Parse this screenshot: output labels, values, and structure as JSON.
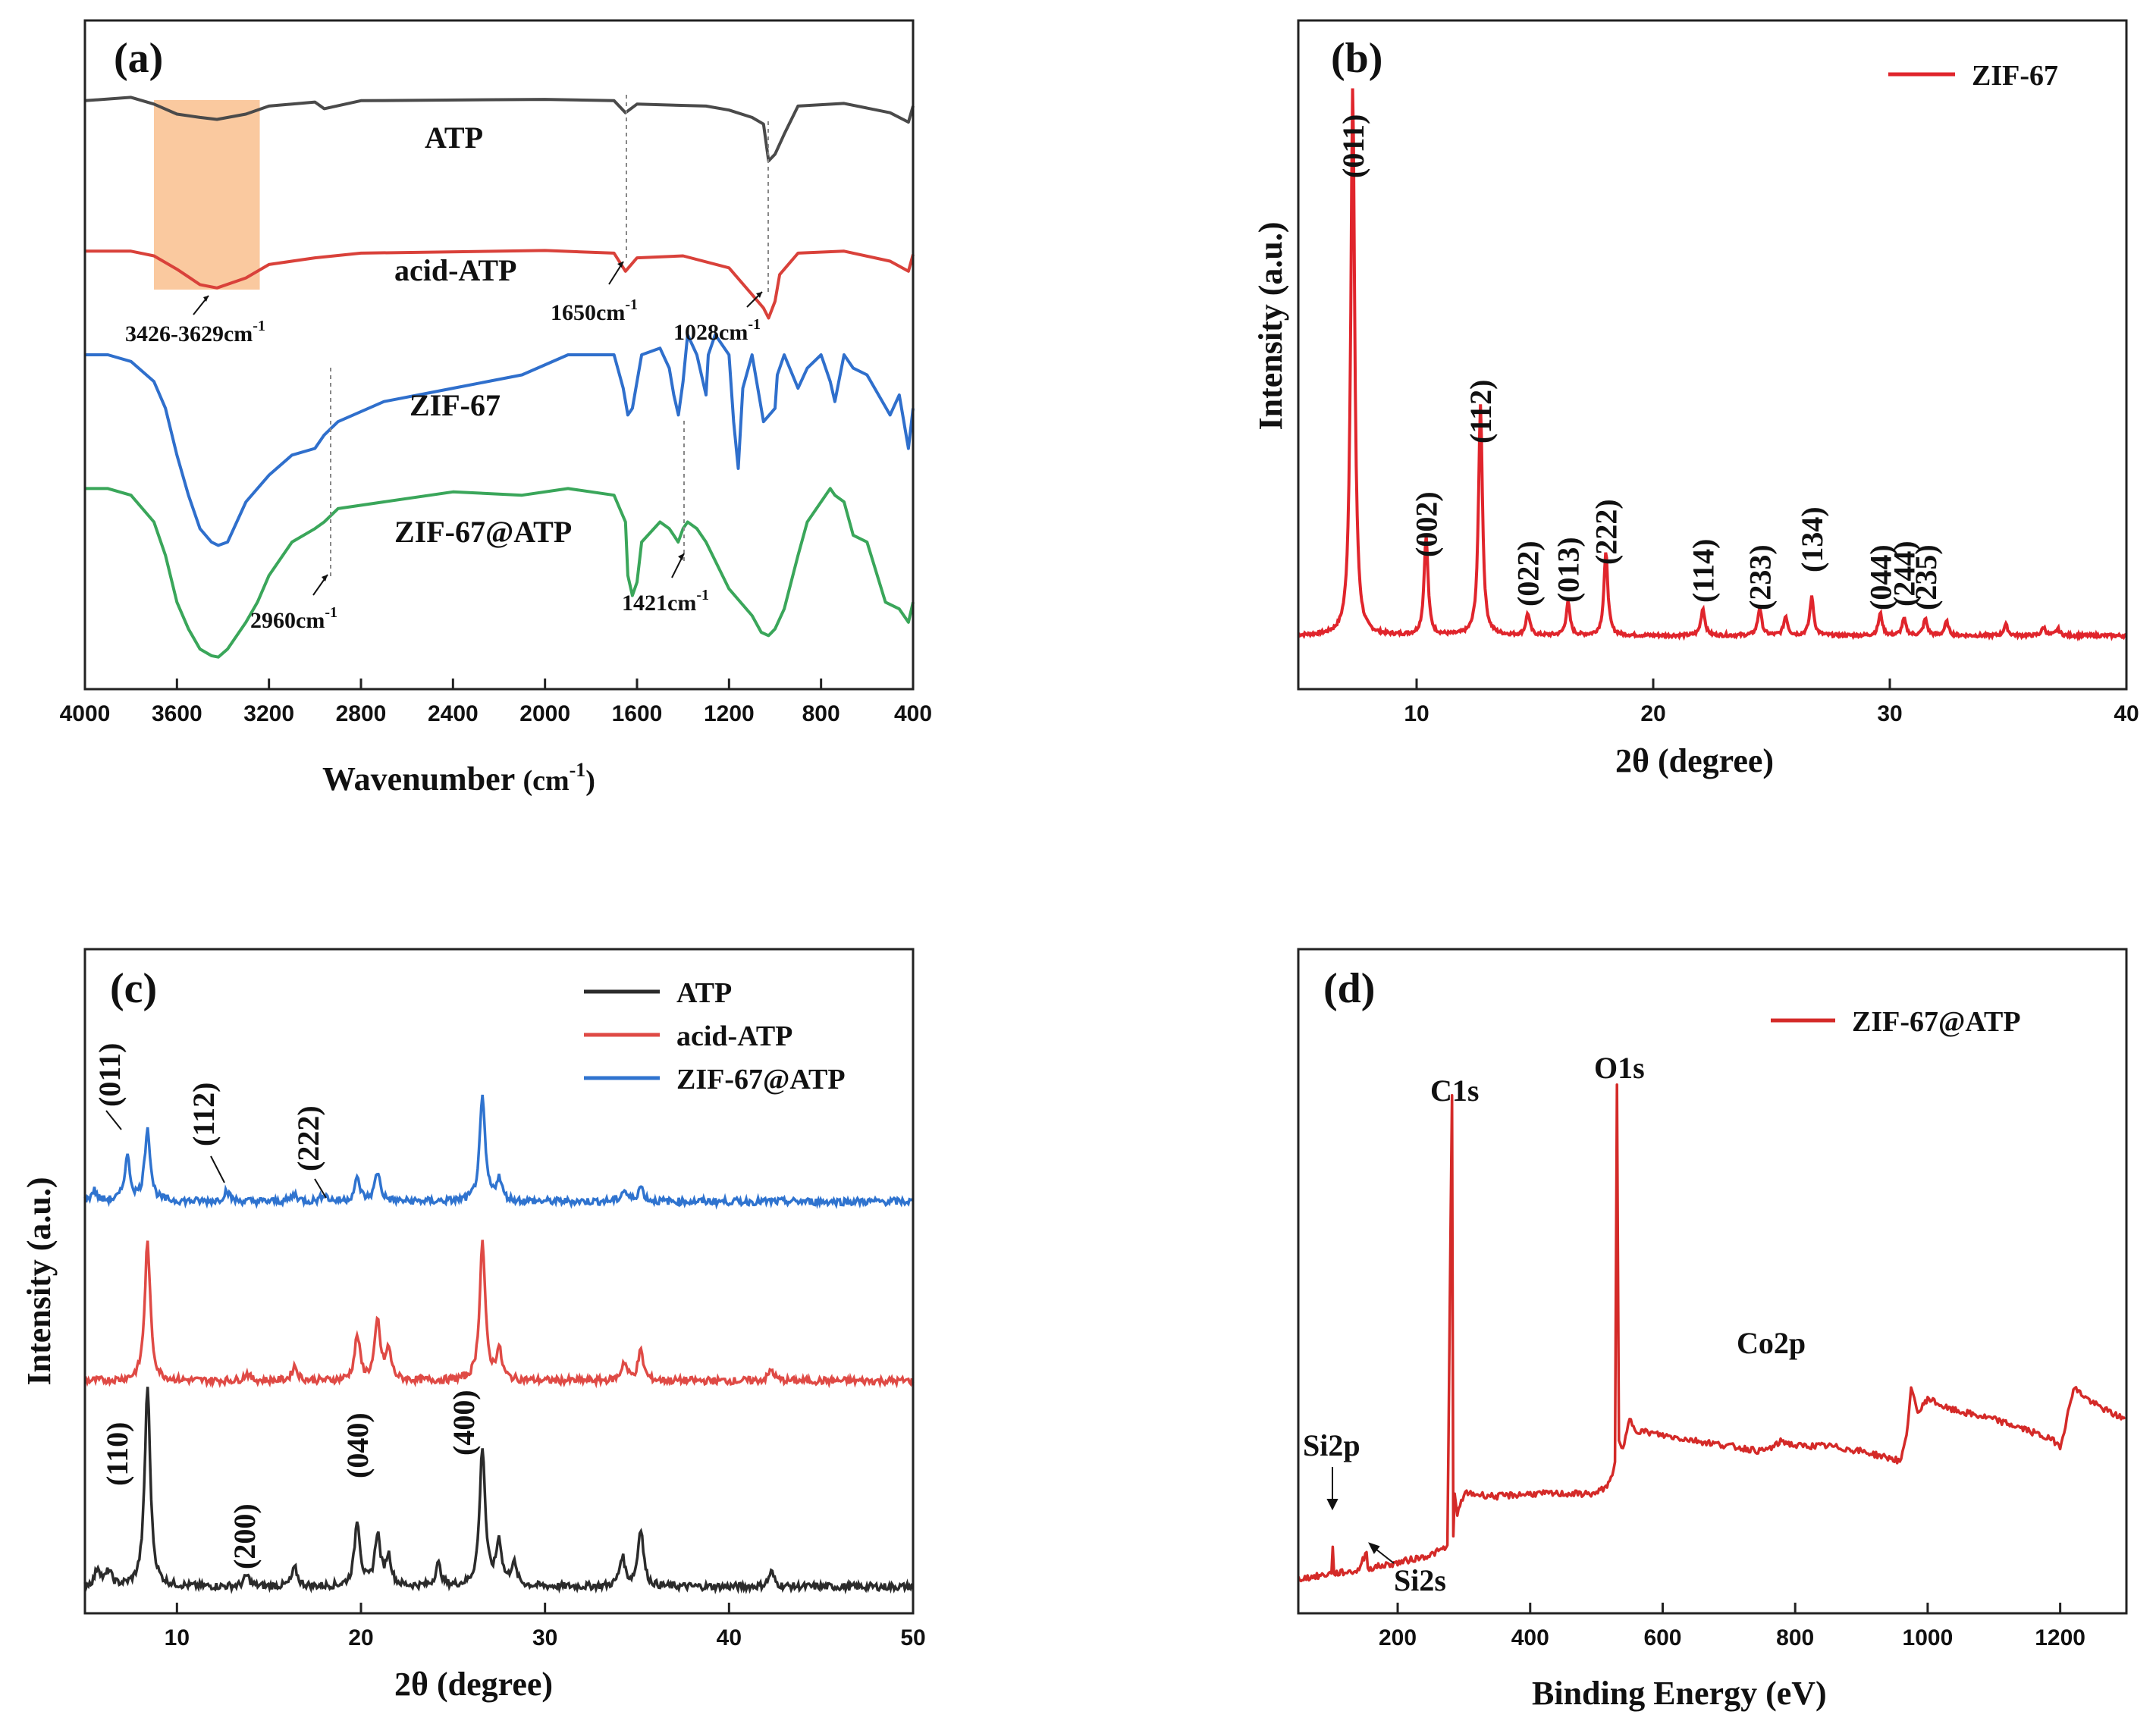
{
  "chart_data": [
    {
      "panel": "(a)",
      "type": "line",
      "xlabel": "Wavenumber (cm-1)",
      "xlabel_main": "Wavenumber ",
      "xlabel_unit": "(cm",
      "xlabel_sup": "-1",
      "xlabel_close": ")",
      "xlim": [
        4000,
        400
      ],
      "xticks": [
        4000,
        3600,
        3200,
        2800,
        2400,
        2000,
        1600,
        1200,
        800,
        400
      ],
      "series": [
        {
          "name": "ATP",
          "color": "#4a4a4a",
          "x": [
            4000,
            3800,
            3700,
            3600,
            3500,
            3426,
            3300,
            3200,
            3000,
            2960,
            2800,
            2000,
            1700,
            1650,
            1600,
            1300,
            1200,
            1100,
            1050,
            1028,
            1000,
            960,
            900,
            700,
            500,
            420,
            400
          ],
          "y": [
            0.88,
            0.885,
            0.875,
            0.86,
            0.855,
            0.852,
            0.86,
            0.872,
            0.878,
            0.868,
            0.88,
            0.882,
            0.88,
            0.862,
            0.875,
            0.872,
            0.866,
            0.855,
            0.845,
            0.79,
            0.8,
            0.83,
            0.872,
            0.876,
            0.862,
            0.848,
            0.872
          ]
        },
        {
          "name": "acid-ATP",
          "color": "#d9413a",
          "x": [
            4000,
            3800,
            3700,
            3600,
            3500,
            3426,
            3300,
            3200,
            3000,
            2800,
            2000,
            1700,
            1650,
            1600,
            1400,
            1200,
            1100,
            1050,
            1028,
            1000,
            980,
            900,
            700,
            500,
            420,
            400
          ],
          "y": [
            0.655,
            0.655,
            0.648,
            0.628,
            0.605,
            0.6,
            0.615,
            0.635,
            0.645,
            0.652,
            0.656,
            0.652,
            0.625,
            0.645,
            0.648,
            0.63,
            0.59,
            0.57,
            0.555,
            0.58,
            0.62,
            0.652,
            0.655,
            0.64,
            0.625,
            0.65
          ],
          "label": "acid-ATP"
        },
        {
          "name": "ZIF-67",
          "color": "#2f6fcc",
          "x": [
            4000,
            3900,
            3800,
            3700,
            3650,
            3600,
            3550,
            3500,
            3450,
            3420,
            3380,
            3300,
            3200,
            3100,
            3000,
            2960,
            2900,
            2700,
            2400,
            2100,
            1900,
            1700,
            1660,
            1640,
            1620,
            1600,
            1580,
            1500,
            1460,
            1440,
            1420,
            1400,
            1380,
            1340,
            1300,
            1290,
            1260,
            1200,
            1180,
            1160,
            1140,
            1100,
            1050,
            1000,
            990,
            960,
            900,
            860,
            800,
            760,
            740,
            700,
            660,
            600,
            500,
            460,
            420,
            400
          ],
          "y": [
            0.5,
            0.5,
            0.49,
            0.46,
            0.42,
            0.35,
            0.29,
            0.24,
            0.22,
            0.215,
            0.22,
            0.28,
            0.32,
            0.35,
            0.36,
            0.38,
            0.4,
            0.43,
            0.45,
            0.47,
            0.5,
            0.5,
            0.45,
            0.41,
            0.42,
            0.46,
            0.5,
            0.51,
            0.48,
            0.44,
            0.41,
            0.46,
            0.53,
            0.5,
            0.44,
            0.5,
            0.53,
            0.5,
            0.4,
            0.33,
            0.45,
            0.5,
            0.4,
            0.42,
            0.47,
            0.5,
            0.45,
            0.48,
            0.5,
            0.46,
            0.43,
            0.5,
            0.48,
            0.47,
            0.41,
            0.44,
            0.36,
            0.42
          ]
        },
        {
          "name": "ZIF-67@ATP",
          "color": "#3aa65a",
          "x": [
            4000,
            3900,
            3800,
            3700,
            3650,
            3600,
            3550,
            3500,
            3450,
            3420,
            3380,
            3300,
            3250,
            3200,
            3100,
            3000,
            2960,
            2900,
            2700,
            2400,
            2100,
            1900,
            1700,
            1650,
            1640,
            1620,
            1600,
            1580,
            1500,
            1460,
            1440,
            1421,
            1400,
            1380,
            1340,
            1300,
            1200,
            1100,
            1060,
            1028,
            1000,
            960,
            900,
            860,
            800,
            760,
            740,
            700,
            660,
            600,
            520,
            460,
            420,
            400
          ],
          "y": [
            0.3,
            0.3,
            0.29,
            0.25,
            0.2,
            0.13,
            0.09,
            0.06,
            0.05,
            0.048,
            0.06,
            0.1,
            0.13,
            0.17,
            0.22,
            0.24,
            0.25,
            0.27,
            0.28,
            0.295,
            0.29,
            0.3,
            0.29,
            0.25,
            0.17,
            0.14,
            0.16,
            0.22,
            0.25,
            0.24,
            0.23,
            0.22,
            0.24,
            0.25,
            0.24,
            0.22,
            0.15,
            0.11,
            0.085,
            0.08,
            0.09,
            0.12,
            0.2,
            0.25,
            0.28,
            0.3,
            0.29,
            0.28,
            0.23,
            0.22,
            0.13,
            0.12,
            0.1,
            0.13
          ]
        }
      ],
      "curve_labels": [
        "ATP",
        "acid-ATP",
        "ZIF-67",
        "ZIF-67@ATP"
      ],
      "annotations": [
        {
          "text_main": "3426-3629cm",
          "sup": "-1"
        },
        {
          "text_main": "1650cm",
          "sup": "-1"
        },
        {
          "text_main": "1028cm",
          "sup": "-1"
        },
        {
          "text_main": "2960cm",
          "sup": "-1"
        },
        {
          "text_main": "1421cm",
          "sup": "-1"
        }
      ],
      "highlight_band": {
        "x_from": 3700,
        "x_to": 3240,
        "color": "#f9c08e"
      }
    },
    {
      "panel": "(b)",
      "type": "line",
      "xlabel": "2θ (degree)",
      "ylabel": "Intensity (a.u.)",
      "xlim": [
        5,
        40
      ],
      "xticks": [
        10,
        20,
        30,
        40
      ],
      "series": [
        {
          "name": "ZIF-67",
          "color": "#e0252c",
          "peaks": [
            [
              7.3,
              1.0
            ],
            [
              10.4,
              0.18
            ],
            [
              12.7,
              0.42
            ],
            [
              14.7,
              0.04
            ],
            [
              16.4,
              0.06
            ],
            [
              18.0,
              0.15
            ],
            [
              22.1,
              0.05
            ],
            [
              24.5,
              0.05
            ],
            [
              25.6,
              0.035
            ],
            [
              26.7,
              0.07
            ],
            [
              29.6,
              0.04
            ],
            [
              30.6,
              0.03
            ],
            [
              31.5,
              0.03
            ],
            [
              32.4,
              0.025
            ],
            [
              34.9,
              0.02
            ],
            [
              36.5,
              0.015
            ],
            [
              37.1,
              0.012
            ]
          ]
        }
      ],
      "peak_labels": [
        "(011)",
        "(002)",
        "(112)",
        "(022)",
        "(013)",
        "(222)",
        "(114)",
        "(233)",
        "(134)",
        "(044)",
        "(244)",
        "(235)"
      ],
      "legend": "top-right"
    },
    {
      "panel": "(c)",
      "type": "line",
      "xlabel": "2θ (degree)",
      "ylabel": "Intensity (a.u.)",
      "xlim": [
        5,
        50
      ],
      "xticks": [
        10,
        20,
        30,
        40,
        50
      ],
      "series": [
        {
          "name": "ATP",
          "color": "#2b2b2b",
          "peaks": [
            [
              5.7,
              0.05
            ],
            [
              6.3,
              0.04
            ],
            [
              8.4,
              0.55
            ],
            [
              13.8,
              0.03
            ],
            [
              16.4,
              0.05
            ],
            [
              19.8,
              0.18
            ],
            [
              20.9,
              0.14
            ],
            [
              21.5,
              0.08
            ],
            [
              24.2,
              0.06
            ],
            [
              26.6,
              0.38
            ],
            [
              27.5,
              0.12
            ],
            [
              28.3,
              0.06
            ],
            [
              35.2,
              0.16
            ],
            [
              34.2,
              0.08
            ],
            [
              42.3,
              0.04
            ]
          ]
        },
        {
          "name": "acid-ATP",
          "color": "#df4a45",
          "peaks": [
            [
              8.4,
              0.38
            ],
            [
              13.8,
              0.02
            ],
            [
              16.4,
              0.04
            ],
            [
              19.8,
              0.12
            ],
            [
              20.9,
              0.16
            ],
            [
              21.5,
              0.08
            ],
            [
              26.6,
              0.38
            ],
            [
              27.5,
              0.08
            ],
            [
              35.2,
              0.08
            ],
            [
              34.3,
              0.05
            ],
            [
              42.3,
              0.03
            ]
          ]
        },
        {
          "name": "ZIF-67@ATP",
          "color": "#2f73cf",
          "peaks": [
            [
              5.5,
              0.03
            ],
            [
              7.3,
              0.12
            ],
            [
              8.4,
              0.2
            ],
            [
              12.7,
              0.03
            ],
            [
              16.4,
              0.02
            ],
            [
              18.0,
              0.02
            ],
            [
              19.8,
              0.06
            ],
            [
              20.9,
              0.08
            ],
            [
              26.6,
              0.28
            ],
            [
              27.5,
              0.06
            ],
            [
              35.2,
              0.04
            ],
            [
              34.3,
              0.03
            ]
          ]
        }
      ],
      "peak_labels": [
        "(011)",
        "(112)",
        "(222)",
        "(110)",
        "(200)",
        "(040)",
        "(400)"
      ],
      "legend": "top-right"
    },
    {
      "panel": "(d)",
      "type": "line",
      "xlabel": "Binding Energy (eV)",
      "xlim": [
        50,
        1300
      ],
      "xticks": [
        200,
        400,
        600,
        800,
        1000,
        1200
      ],
      "series": [
        {
          "name": "ZIF-67@ATP",
          "color": "#d42a28",
          "x": [
            50,
            80,
            100,
            102,
            104,
            140,
            153,
            155,
            157,
            200,
            250,
            275,
            282,
            284,
            286,
            290,
            300,
            310,
            350,
            400,
            450,
            500,
            520,
            528,
            531,
            534,
            540,
            550,
            560,
            600,
            650,
            700,
            750,
            770,
            780,
            800,
            850,
            900,
            950,
            960,
            970,
            975,
            980,
            985,
            1000,
            1030,
            1100,
            1150,
            1190,
            1200,
            1210,
            1220,
            1230,
            1250,
            1280,
            1300
          ],
          "y": [
            0.04,
            0.045,
            0.05,
            0.1,
            0.05,
            0.055,
            0.09,
            0.06,
            0.06,
            0.07,
            0.085,
            0.1,
            0.95,
            0.12,
            0.2,
            0.16,
            0.2,
            0.2,
            0.195,
            0.2,
            0.2,
            0.2,
            0.22,
            0.26,
            0.97,
            0.3,
            0.28,
            0.34,
            0.32,
            0.31,
            0.3,
            0.29,
            0.28,
            0.29,
            0.3,
            0.29,
            0.29,
            0.28,
            0.265,
            0.26,
            0.33,
            0.4,
            0.38,
            0.35,
            0.38,
            0.36,
            0.34,
            0.32,
            0.3,
            0.29,
            0.34,
            0.4,
            0.39,
            0.37,
            0.35,
            0.34
          ]
        }
      ],
      "peak_labels": [
        "C1s",
        "O1s",
        "Co2p",
        "Si2p",
        "Si2s"
      ],
      "legend": "top-right"
    }
  ]
}
